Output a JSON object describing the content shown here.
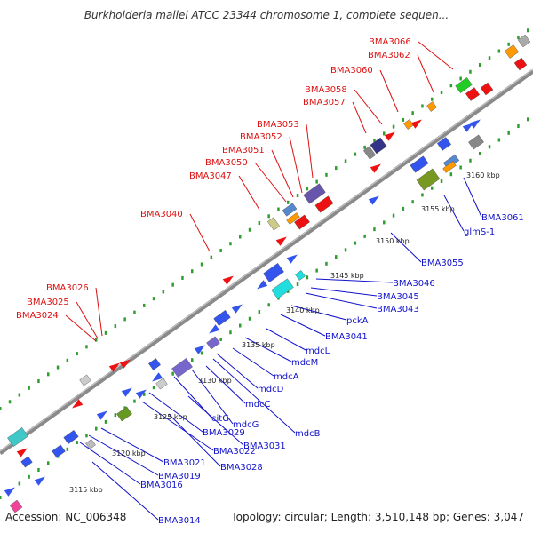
{
  "title": "Burkholderia mallei ATCC 23344 chromosome 1, complete sequen...",
  "footer": {
    "accession": "Accession: NC_006348",
    "stats": "Topology: circular; Length: 3,510,148 bp; Genes: 3,047"
  },
  "colors": {
    "backbone": "#8a8a8a",
    "dots": "#2f9e2f",
    "top_label": "#dd1111",
    "bottom_label": "#1111cc"
  },
  "ticks": [
    "3115 kbp",
    "3120 kbp",
    "3125 kbp",
    "3130 kbp",
    "3135 kbp",
    "3140 kbp",
    "3145 kbp",
    "3150 kbp",
    "3155 kbp",
    "3160 kbp"
  ],
  "top_labels": [
    "BMA3024",
    "BMA3025",
    "BMA3026",
    "BMA3040",
    "BMA3047",
    "BMA3050",
    "BMA3051",
    "BMA3052",
    "BMA3053",
    "BMA3057",
    "BMA3058",
    "BMA3060",
    "BMA3062",
    "BMA3066"
  ],
  "bottom_labels": [
    "BMA3014",
    "BMA3016",
    "BMA3019",
    "BMA3021",
    "BMA3022",
    "BMA3028",
    "BMA3029",
    "BMA3031",
    "citG",
    "mdcG",
    "mdcB",
    "mdcC",
    "mdcD",
    "mdcA",
    "mdcM",
    "mdcL",
    "BMA3041",
    "pckA",
    "BMA3043",
    "BMA3045",
    "BMA3046",
    "BMA3055",
    "glmS-1",
    "BMA3061"
  ]
}
